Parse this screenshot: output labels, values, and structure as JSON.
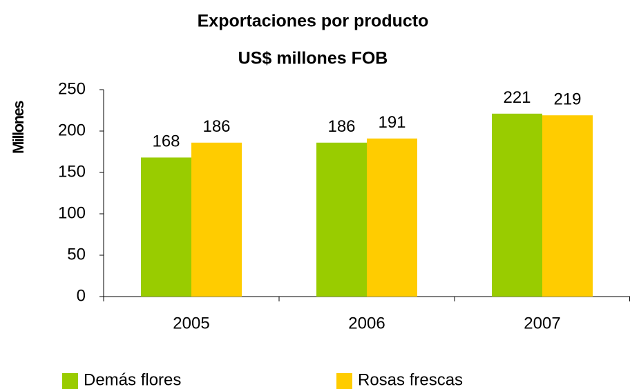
{
  "chart_data": {
    "type": "bar",
    "title": "Exportaciones por producto",
    "subtitle": "US$ millones FOB",
    "y_label": "Millones",
    "categories": [
      "2005",
      "2006",
      "2007"
    ],
    "series": [
      {
        "name": "Demás flores",
        "color": "#99cc00",
        "values": [
          168,
          186,
          221
        ]
      },
      {
        "name": "Rosas frescas",
        "color": "#ffcc00",
        "values": [
          186,
          191,
          219
        ]
      }
    ],
    "ylim": [
      0,
      250
    ],
    "yticks": [
      0,
      50,
      100,
      150,
      200,
      250
    ],
    "grid": false,
    "legend": "bottom",
    "data_labels": true
  }
}
